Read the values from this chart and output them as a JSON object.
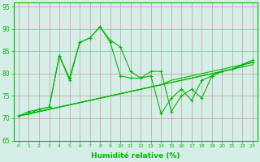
{
  "xlabel": "Humidité relative (%)",
  "xlim": [
    -0.5,
    23.5
  ],
  "ylim": [
    65,
    96
  ],
  "yticks": [
    65,
    70,
    75,
    80,
    85,
    90,
    95
  ],
  "xticks": [
    0,
    1,
    2,
    3,
    4,
    5,
    6,
    7,
    8,
    9,
    10,
    11,
    12,
    13,
    14,
    15,
    16,
    17,
    18,
    19,
    20,
    21,
    22,
    23
  ],
  "bg_color": "#d5eee8",
  "grid_color": "#cc9999",
  "line_color": "#00bb00",
  "figsize": [
    3.2,
    2.0
  ],
  "dpi": 100,
  "series_jagged1": [
    70.5,
    71.5,
    72.0,
    72.5,
    84.0,
    79.0,
    87.0,
    88.0,
    90.5,
    87.5,
    86.0,
    80.5,
    79.0,
    80.5,
    80.5,
    71.5,
    75.0,
    76.5,
    74.5,
    79.5,
    80.5,
    81.0,
    82.0,
    83.0
  ],
  "series_jagged2": [
    70.5,
    71.0,
    72.0,
    72.5,
    84.0,
    78.5,
    87.0,
    88.0,
    90.5,
    87.0,
    79.5,
    79.0,
    79.0,
    79.5,
    71.0,
    74.5,
    76.5,
    74.0,
    78.5,
    79.5,
    80.5,
    81.0,
    82.0,
    82.5
  ],
  "series_linear1": [
    70.5,
    71.0,
    71.5,
    72.0,
    72.5,
    73.0,
    73.5,
    74.0,
    74.5,
    75.0,
    75.5,
    76.0,
    76.5,
    77.0,
    77.5,
    78.0,
    78.5,
    79.0,
    79.5,
    80.0,
    80.5,
    81.0,
    81.5,
    82.0
  ],
  "series_linear2": [
    70.5,
    71.0,
    71.5,
    72.0,
    72.5,
    73.0,
    73.5,
    74.0,
    74.5,
    75.0,
    75.5,
    76.0,
    76.5,
    77.0,
    77.5,
    78.0,
    78.5,
    79.0,
    79.5,
    80.0,
    80.5,
    81.0,
    82.0,
    82.5
  ],
  "series_linear3": [
    70.5,
    71.0,
    71.5,
    72.0,
    72.5,
    73.0,
    73.5,
    74.0,
    74.5,
    75.0,
    75.5,
    76.0,
    76.5,
    77.0,
    77.5,
    78.5,
    79.0,
    79.5,
    80.0,
    80.5,
    81.0,
    81.5,
    82.0,
    83.0
  ]
}
